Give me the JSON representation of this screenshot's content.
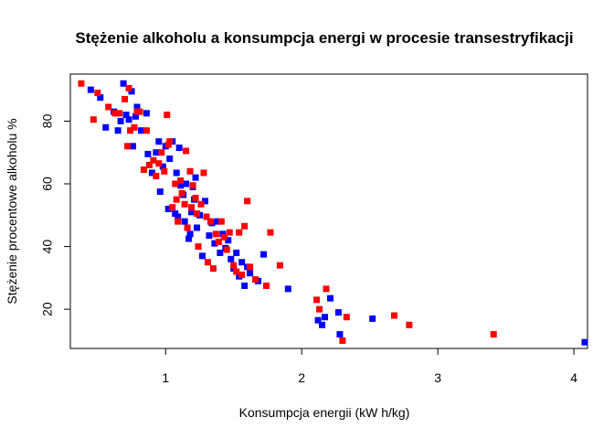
{
  "chart_data": {
    "type": "scatter",
    "title": "Stężenie alkoholu a konsumpcja energi w procesie transestryfikacji",
    "xlabel": "Konsumpcja energii (kW h/kg)",
    "ylabel": "Stężenie procentowe alkoholu %",
    "xlim": [
      0.3,
      4.1
    ],
    "ylim": [
      7.5,
      95.0
    ],
    "xticks": [
      1,
      2,
      3,
      4
    ],
    "yticks": [
      20,
      40,
      60,
      80
    ],
    "grid": false,
    "legend": "none",
    "series": [
      {
        "color": "#0000ff",
        "marker": "square",
        "points": [
          [
            0.45,
            90.0
          ],
          [
            0.52,
            87.5
          ],
          [
            0.56,
            78.0
          ],
          [
            0.62,
            83.0
          ],
          [
            0.65,
            77.0
          ],
          [
            0.67,
            80.0
          ],
          [
            0.69,
            92.0
          ],
          [
            0.71,
            82.0
          ],
          [
            0.73,
            80.5
          ],
          [
            0.75,
            89.5
          ],
          [
            0.76,
            72.0
          ],
          [
            0.78,
            81.5
          ],
          [
            0.79,
            84.5
          ],
          [
            0.82,
            77.0
          ],
          [
            0.86,
            82.5
          ],
          [
            0.87,
            69.5
          ],
          [
            0.9,
            63.5
          ],
          [
            0.93,
            70.0
          ],
          [
            0.95,
            73.5
          ],
          [
            0.96,
            57.5
          ],
          [
            0.98,
            65.5
          ],
          [
            1.0,
            72.0
          ],
          [
            1.02,
            52.0
          ],
          [
            1.03,
            68.0
          ],
          [
            1.05,
            73.5
          ],
          [
            1.07,
            50.5
          ],
          [
            1.08,
            63.5
          ],
          [
            1.09,
            49.5
          ],
          [
            1.1,
            71.5
          ],
          [
            1.11,
            59.5
          ],
          [
            1.13,
            56.5
          ],
          [
            1.14,
            48.0
          ],
          [
            1.15,
            60.0
          ],
          [
            1.17,
            42.5
          ],
          [
            1.18,
            44.0
          ],
          [
            1.19,
            51.0
          ],
          [
            1.2,
            59.0
          ],
          [
            1.21,
            55.0
          ],
          [
            1.22,
            62.0
          ],
          [
            1.23,
            46.0
          ],
          [
            1.25,
            50.0
          ],
          [
            1.27,
            37.0
          ],
          [
            1.29,
            54.5
          ],
          [
            1.32,
            43.5
          ],
          [
            1.34,
            47.5
          ],
          [
            1.36,
            41.0
          ],
          [
            1.38,
            48.0
          ],
          [
            1.4,
            38.0
          ],
          [
            1.42,
            44.0
          ],
          [
            1.44,
            39.5
          ],
          [
            1.46,
            42.0
          ],
          [
            1.48,
            36.0
          ],
          [
            1.5,
            33.0
          ],
          [
            1.52,
            38.0
          ],
          [
            1.54,
            30.5
          ],
          [
            1.56,
            35.0
          ],
          [
            1.58,
            27.5
          ],
          [
            1.6,
            33.5
          ],
          [
            1.62,
            31.5
          ],
          [
            1.68,
            29.0
          ],
          [
            1.72,
            37.5
          ],
          [
            1.9,
            26.5
          ],
          [
            2.12,
            16.5
          ],
          [
            2.15,
            15.0
          ],
          [
            2.17,
            17.5
          ],
          [
            2.21,
            23.5
          ],
          [
            2.27,
            19.0
          ],
          [
            2.28,
            12.0
          ],
          [
            2.52,
            17.0
          ],
          [
            4.08,
            9.5
          ]
        ]
      },
      {
        "color": "#ff0000",
        "marker": "square",
        "points": [
          [
            0.38,
            92.0
          ],
          [
            0.47,
            80.5
          ],
          [
            0.5,
            89.0
          ],
          [
            0.58,
            84.5
          ],
          [
            0.63,
            82.5
          ],
          [
            0.66,
            82.5
          ],
          [
            0.7,
            87.0
          ],
          [
            0.72,
            72.0
          ],
          [
            0.73,
            90.5
          ],
          [
            0.74,
            77.0
          ],
          [
            0.77,
            78.0
          ],
          [
            0.79,
            83.0
          ],
          [
            0.81,
            83.0
          ],
          [
            0.84,
            64.5
          ],
          [
            0.86,
            77.0
          ],
          [
            0.88,
            66.0
          ],
          [
            0.91,
            67.5
          ],
          [
            0.93,
            62.5
          ],
          [
            0.95,
            66.5
          ],
          [
            0.97,
            70.0
          ],
          [
            0.99,
            64.0
          ],
          [
            1.01,
            82.0
          ],
          [
            1.02,
            72.5
          ],
          [
            1.03,
            73.5
          ],
          [
            1.05,
            52.5
          ],
          [
            1.07,
            60.0
          ],
          [
            1.08,
            55.0
          ],
          [
            1.09,
            48.0
          ],
          [
            1.11,
            61.0
          ],
          [
            1.12,
            57.0
          ],
          [
            1.14,
            53.5
          ],
          [
            1.15,
            70.5
          ],
          [
            1.16,
            46.0
          ],
          [
            1.18,
            64.0
          ],
          [
            1.19,
            52.5
          ],
          [
            1.2,
            59.5
          ],
          [
            1.22,
            55.5
          ],
          [
            1.23,
            50.5
          ],
          [
            1.24,
            40.0
          ],
          [
            1.26,
            53.5
          ],
          [
            1.28,
            63.5
          ],
          [
            1.3,
            49.5
          ],
          [
            1.31,
            35.0
          ],
          [
            1.33,
            48.0
          ],
          [
            1.35,
            33.0
          ],
          [
            1.37,
            44.0
          ],
          [
            1.39,
            41.5
          ],
          [
            1.41,
            48.0
          ],
          [
            1.43,
            43.0
          ],
          [
            1.45,
            39.0
          ],
          [
            1.47,
            44.5
          ],
          [
            1.5,
            34.0
          ],
          [
            1.52,
            32.0
          ],
          [
            1.54,
            44.5
          ],
          [
            1.56,
            31.0
          ],
          [
            1.58,
            46.5
          ],
          [
            1.6,
            54.5
          ],
          [
            1.62,
            33.5
          ],
          [
            1.66,
            29.5
          ],
          [
            1.74,
            27.5
          ],
          [
            1.77,
            44.5
          ],
          [
            1.84,
            34.0
          ],
          [
            2.11,
            23.0
          ],
          [
            2.13,
            20.0
          ],
          [
            2.18,
            26.5
          ],
          [
            2.3,
            10.0
          ],
          [
            2.33,
            17.5
          ],
          [
            2.68,
            18.0
          ],
          [
            2.79,
            15.0
          ],
          [
            3.41,
            12.0
          ]
        ]
      }
    ]
  }
}
